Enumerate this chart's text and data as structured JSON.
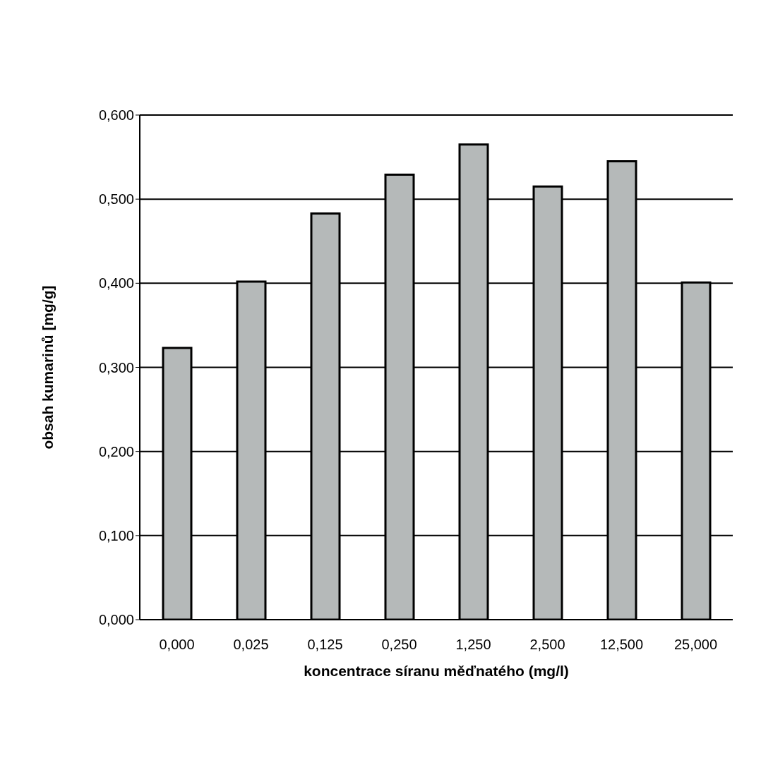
{
  "chart_data": {
    "type": "bar",
    "xlabel": "koncentrace síranu měďnatého (mg/l)",
    "ylabel": "obsah kumarinů [mg/g]",
    "categories": [
      "0,000",
      "0,025",
      "0,125",
      "0,250",
      "1,250",
      "2,500",
      "12,500",
      "25,000"
    ],
    "values": [
      0.323,
      0.402,
      0.483,
      0.529,
      0.565,
      0.515,
      0.545,
      0.401
    ],
    "color": "#b5b9b9",
    "ylim": [
      0,
      0.6
    ],
    "yticks": [
      {
        "value": 0,
        "label": "0,000"
      },
      {
        "value": 0.1,
        "label": "0,100"
      },
      {
        "value": 0.2,
        "label": "0,200"
      },
      {
        "value": 0.3,
        "label": "0,300"
      },
      {
        "value": 0.4,
        "label": "0,400"
      },
      {
        "value": 0.5,
        "label": "0,500"
      },
      {
        "value": 0.6,
        "label": "0,600"
      }
    ],
    "grid": "y"
  }
}
